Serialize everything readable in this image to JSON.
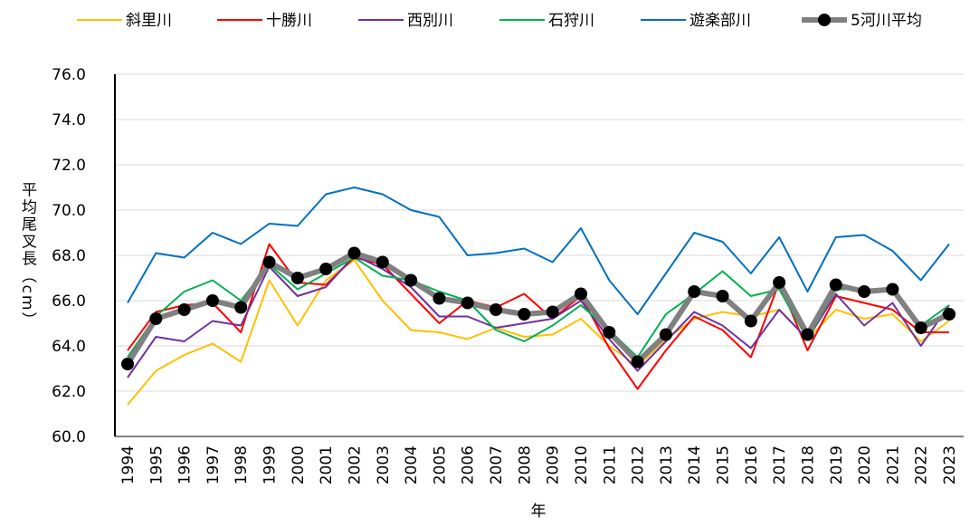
{
  "chart_data": {
    "type": "line",
    "x_label": "年",
    "y_label": "平均尾叉長（cm）",
    "categories": [
      "1994",
      "1995",
      "1996",
      "1997",
      "1998",
      "1999",
      "2000",
      "2001",
      "2002",
      "2003",
      "2004",
      "2005",
      "2006",
      "2007",
      "2008",
      "2009",
      "2010",
      "2011",
      "2012",
      "2013",
      "2014",
      "2015",
      "2016",
      "2017",
      "2018",
      "2019",
      "2020",
      "2021",
      "2022",
      "2023"
    ],
    "ylim": [
      60,
      76
    ],
    "yticks": [
      {
        "value": 60,
        "label": "60.0"
      },
      {
        "value": 62,
        "label": "62.0"
      },
      {
        "value": 64,
        "label": "64.0"
      },
      {
        "value": 66,
        "label": "66.0"
      },
      {
        "value": 68,
        "label": "68.0"
      },
      {
        "value": 70,
        "label": "70.0"
      },
      {
        "value": 72,
        "label": "72.0"
      },
      {
        "value": 74,
        "label": "74.0"
      },
      {
        "value": 76,
        "label": "76.0"
      }
    ],
    "grid": true,
    "legend": "top",
    "series": [
      {
        "name": "斜里川",
        "color": "#FFC000",
        "values": [
          61.4,
          62.9,
          63.6,
          64.1,
          63.3,
          66.9,
          64.9,
          66.9,
          67.8,
          66.0,
          64.7,
          64.6,
          64.3,
          64.8,
          64.4,
          64.5,
          65.2,
          64.0,
          63.1,
          64.3,
          65.2,
          65.5,
          65.3,
          65.6,
          64.3,
          65.6,
          65.2,
          65.4,
          64.2,
          65.1
        ]
      },
      {
        "name": "十勝川",
        "color": "#FF0000",
        "values": [
          63.8,
          65.5,
          65.8,
          65.9,
          64.6,
          68.5,
          66.8,
          66.7,
          67.9,
          67.6,
          66.3,
          65.0,
          66.0,
          65.7,
          66.3,
          65.2,
          66.2,
          63.9,
          62.1,
          63.8,
          65.3,
          64.7,
          63.5,
          66.8,
          63.8,
          66.2,
          65.9,
          65.6,
          64.6,
          64.6
        ]
      },
      {
        "name": "西別川",
        "color": "#7030A0",
        "values": [
          62.6,
          64.4,
          64.2,
          65.1,
          64.9,
          67.5,
          66.2,
          66.6,
          68.0,
          67.4,
          66.6,
          65.3,
          65.3,
          64.8,
          65.0,
          65.2,
          66.0,
          64.3,
          62.9,
          64.2,
          65.5,
          64.9,
          63.9,
          65.6,
          64.3,
          66.3,
          64.9,
          65.9,
          64.0,
          65.8
        ]
      },
      {
        "name": "石狩川",
        "color": "#00B050",
        "values": [
          63.5,
          65.3,
          66.4,
          66.9,
          66.0,
          67.6,
          66.5,
          67.2,
          67.9,
          67.1,
          66.9,
          66.4,
          66.0,
          64.7,
          64.2,
          64.9,
          65.8,
          64.7,
          63.5,
          65.4,
          66.3,
          67.3,
          66.2,
          66.5,
          64.3,
          66.5,
          66.5,
          66.5,
          64.9,
          65.8
        ]
      },
      {
        "name": "遊楽部川",
        "color": "#0070C0",
        "values": [
          65.9,
          68.1,
          67.9,
          69.0,
          68.5,
          69.4,
          69.3,
          70.7,
          71.0,
          70.7,
          70.0,
          69.7,
          68.0,
          68.1,
          68.3,
          67.7,
          69.2,
          66.9,
          65.4,
          67.2,
          69.0,
          68.6,
          67.2,
          68.8,
          66.4,
          68.8,
          68.9,
          68.2,
          66.9,
          68.5
        ]
      },
      {
        "name": "5河川平均",
        "color": "#808080",
        "marker_color": "#000000",
        "values": [
          63.2,
          65.2,
          65.6,
          66.0,
          65.7,
          67.7,
          67.0,
          67.4,
          68.1,
          67.7,
          66.9,
          66.1,
          65.9,
          65.6,
          65.4,
          65.5,
          66.3,
          64.6,
          63.3,
          64.5,
          66.4,
          66.2,
          65.1,
          66.8,
          64.5,
          66.7,
          66.4,
          66.5,
          64.8,
          65.4
        ]
      }
    ]
  }
}
